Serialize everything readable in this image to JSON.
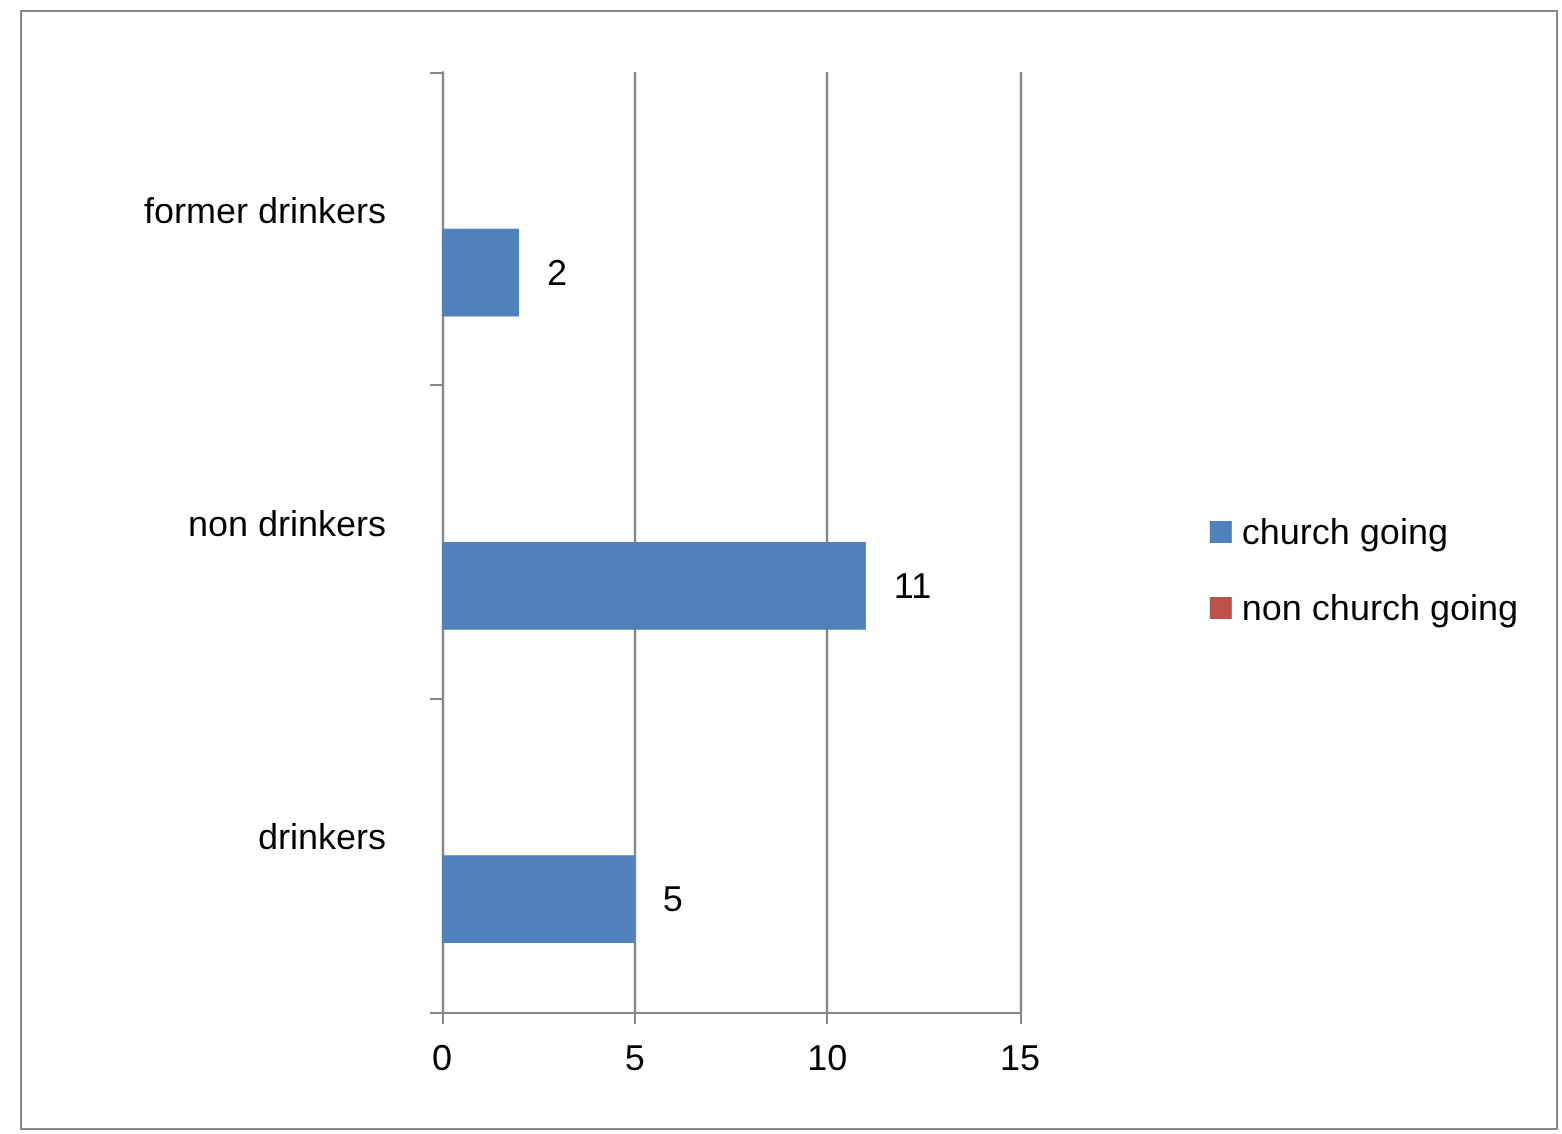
{
  "chart_data": {
    "type": "bar",
    "orientation": "horizontal",
    "categories": [
      "former drinkers",
      "non drinkers",
      "drinkers"
    ],
    "series": [
      {
        "name": "non church going",
        "color": "#c0504d",
        "values": [
          null,
          null,
          null
        ]
      },
      {
        "name": "church going",
        "color": "#4f81bd",
        "values": [
          2,
          11,
          5
        ]
      }
    ],
    "xlim": [
      0,
      15
    ],
    "xticks": [
      0,
      5,
      10,
      15
    ],
    "grid": "x",
    "legend": "right",
    "data_labels": true
  }
}
